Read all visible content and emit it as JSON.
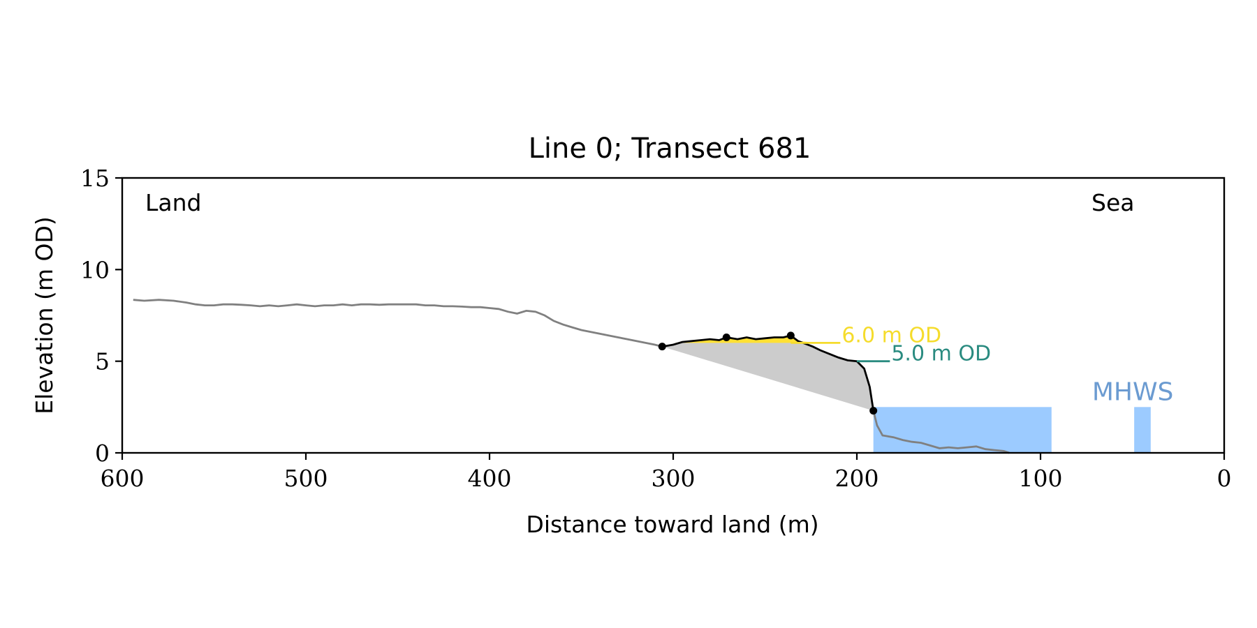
{
  "chart_data": {
    "type": "area",
    "title": "Line 0; Transect 681",
    "xlabel": "Distance toward land (m)",
    "ylabel": "Elevation (m OD)",
    "xlim": [
      600,
      0
    ],
    "ylim": [
      0,
      15
    ],
    "x_ticks": [
      "600",
      "500",
      "400",
      "300",
      "200",
      "100",
      "0"
    ],
    "x_tick_values": [
      600,
      500,
      400,
      300,
      200,
      100,
      0
    ],
    "y_ticks": [
      "0",
      "5",
      "10",
      "15"
    ],
    "y_tick_values": [
      0,
      5,
      10,
      15
    ],
    "grid": false,
    "corner_labels": {
      "left": "Land",
      "right": "Sea"
    },
    "colors": {
      "profile": "#808080",
      "dune": "#000000",
      "wedge_fill": "#cccccc",
      "above_6_fill": "#ffe033",
      "level_6": "#f5dc2c",
      "level_5": "#2a8b80",
      "mhws": "#9ccbff",
      "mhws_text": "#6b9bd1"
    },
    "profile": {
      "x": [
        594,
        588,
        580,
        572,
        565,
        560,
        555,
        550,
        545,
        540,
        535,
        530,
        525,
        520,
        515,
        510,
        505,
        500,
        495,
        490,
        485,
        480,
        475,
        470,
        465,
        460,
        455,
        450,
        445,
        440,
        435,
        430,
        425,
        420,
        415,
        410,
        405,
        400,
        395,
        390,
        385,
        380,
        375,
        370,
        365,
        360,
        355,
        350,
        345,
        340,
        335,
        330,
        325,
        320,
        315,
        310,
        306
      ],
      "y": [
        8.35,
        8.3,
        8.35,
        8.3,
        8.2,
        8.1,
        8.05,
        8.05,
        8.1,
        8.1,
        8.08,
        8.05,
        8.0,
        8.05,
        8.0,
        8.05,
        8.1,
        8.05,
        8.0,
        8.05,
        8.05,
        8.1,
        8.05,
        8.1,
        8.1,
        8.08,
        8.1,
        8.1,
        8.1,
        8.1,
        8.05,
        8.05,
        8.0,
        8.0,
        7.98,
        7.95,
        7.95,
        7.9,
        7.85,
        7.7,
        7.6,
        7.75,
        7.7,
        7.5,
        7.2,
        7.0,
        6.85,
        6.7,
        6.6,
        6.5,
        6.4,
        6.3,
        6.2,
        6.1,
        6.0,
        5.9,
        5.8
      ]
    },
    "dune": {
      "x": [
        306,
        300,
        295,
        290,
        285,
        280,
        275,
        271,
        265,
        260,
        255,
        250,
        245,
        240,
        236,
        232,
        228,
        224,
        220,
        215,
        210,
        205,
        200,
        196,
        193,
        191
      ],
      "y": [
        5.8,
        5.9,
        6.05,
        6.1,
        6.15,
        6.2,
        6.15,
        6.3,
        6.2,
        6.3,
        6.2,
        6.25,
        6.3,
        6.3,
        6.4,
        6.1,
        5.95,
        5.8,
        5.6,
        5.4,
        5.2,
        5.05,
        5.0,
        4.6,
        3.6,
        2.3
      ]
    },
    "dune_points": {
      "x": [
        306,
        271,
        236,
        191
      ],
      "y": [
        5.8,
        6.3,
        6.4,
        2.3
      ]
    },
    "nearshore": {
      "x": [
        191,
        189,
        186,
        180,
        175,
        170,
        165,
        160,
        155,
        150,
        145,
        140,
        135,
        130,
        125,
        120,
        117
      ],
      "y": [
        2.3,
        1.5,
        0.95,
        0.85,
        0.7,
        0.6,
        0.55,
        0.4,
        0.25,
        0.3,
        0.25,
        0.3,
        0.35,
        0.2,
        0.15,
        0.1,
        0.0
      ]
    },
    "levels": [
      {
        "label": "6.0 m OD",
        "value": 6.0,
        "x_start": 236,
        "x_end": 209
      },
      {
        "label": "5.0 m OD",
        "value": 5.0,
        "x_start": 200,
        "x_end": 182
      }
    ],
    "mhws": {
      "label": "MHWS",
      "value": 2.5,
      "x_start": 191,
      "x_end": 94,
      "marker_x_start": 49,
      "marker_x_end": 40
    }
  }
}
